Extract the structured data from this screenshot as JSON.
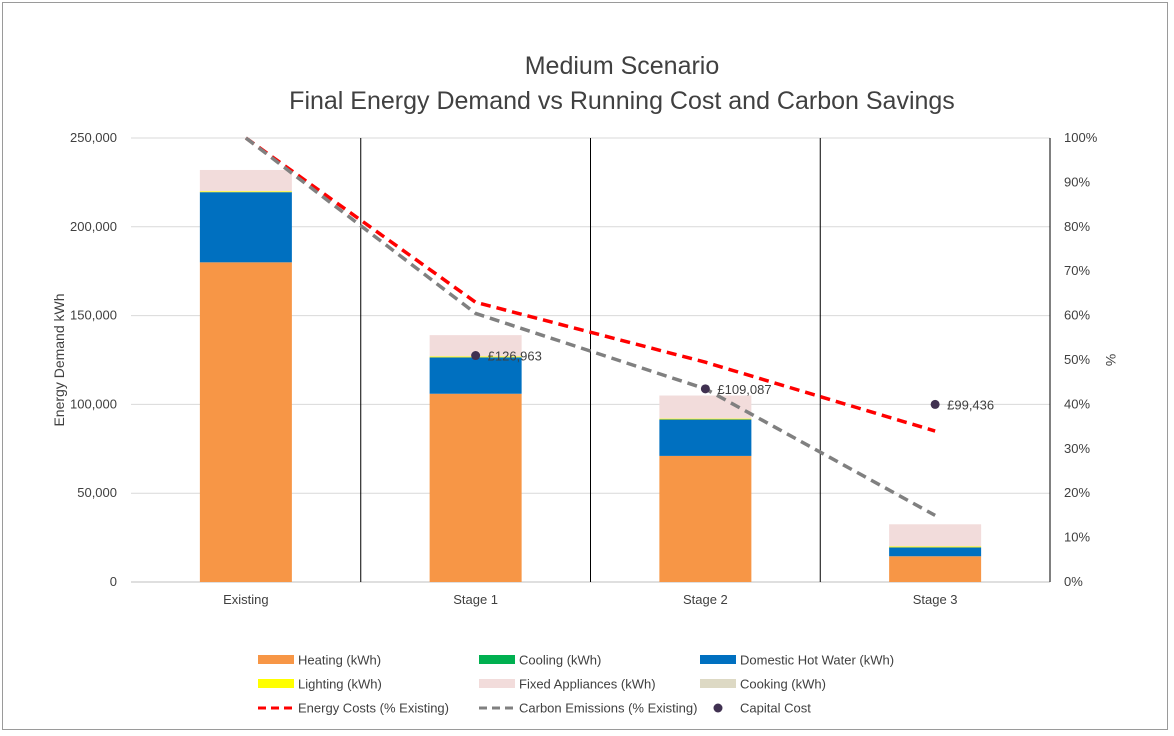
{
  "chart_data": {
    "type": "bar",
    "stacked": true,
    "title": [
      "Medium Scenario",
      "Final Energy Demand vs Running Cost and Carbon Savings"
    ],
    "categories": [
      "Existing",
      "Stage 1",
      "Stage 2",
      "Stage 3"
    ],
    "ylabel": "Energy Demand kWh",
    "ylim": [
      0,
      250000
    ],
    "y_ticks": [
      "0",
      "50,000",
      "100,000",
      "150,000",
      "200,000",
      "250,000"
    ],
    "y2label": "%",
    "y2lim": [
      0,
      100
    ],
    "y2_ticks": [
      "0%",
      "10%",
      "20%",
      "30%",
      "40%",
      "50%",
      "60%",
      "70%",
      "80%",
      "90%",
      "100%"
    ],
    "grid": true,
    "legend_position": "bottom",
    "series": [
      {
        "name": "Heating (kWh)",
        "kind": "bar",
        "color": "#F79646",
        "values": [
          180000,
          106000,
          71000,
          14500
        ]
      },
      {
        "name": "Cooling (kWh)",
        "kind": "bar",
        "color": "#00B050",
        "values": [
          0,
          0,
          0,
          0
        ]
      },
      {
        "name": "Domestic Hot Water (kWh)",
        "kind": "bar",
        "color": "#0070C0",
        "values": [
          39500,
          20500,
          20500,
          5000
        ]
      },
      {
        "name": "Lighting (kWh)",
        "kind": "bar",
        "color": "#FFFF00",
        "values": [
          500,
          500,
          500,
          500
        ]
      },
      {
        "name": "Fixed Appliances (kWh)",
        "kind": "bar",
        "color": "#F2DCDB",
        "values": [
          12000,
          12000,
          13000,
          12500
        ]
      },
      {
        "name": "Cooking (kWh)",
        "kind": "bar",
        "color": "#DDD9C4",
        "values": [
          0,
          0,
          0,
          0
        ]
      },
      {
        "name": "Energy Costs (% Existing)",
        "kind": "line",
        "dash": true,
        "axis": "right",
        "color": "#FF0000",
        "values": [
          100,
          63,
          49.5,
          34
        ]
      },
      {
        "name": "Carbon Emissions (% Existing)",
        "kind": "line",
        "dash": true,
        "axis": "right",
        "color": "#808080",
        "values": [
          100,
          60.5,
          43.5,
          15
        ]
      },
      {
        "name": "Capital Cost",
        "kind": "scatter",
        "axis": "right",
        "color": "#403151",
        "values": [
          null,
          51,
          43.5,
          40
        ],
        "labels": [
          "",
          "£126,963",
          "£109,087",
          "£99,436"
        ]
      }
    ]
  }
}
